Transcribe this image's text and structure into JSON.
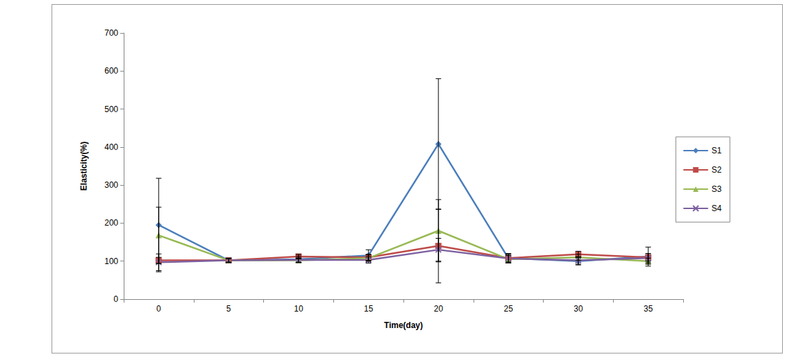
{
  "chart_data": {
    "type": "line",
    "x_label": "Time(day)",
    "y_label": "Elasticity(%)",
    "categories": [
      "0",
      "5",
      "10",
      "15",
      "20",
      "25",
      "30",
      "35"
    ],
    "ylim": [
      0,
      700
    ],
    "yticks": [
      0,
      100,
      200,
      300,
      400,
      500,
      600,
      700
    ],
    "grid": false,
    "legend": "right",
    "series": [
      {
        "name": "S1",
        "color": "#4a7ebb",
        "marker": "diamond",
        "values": [
          195,
          102,
          105,
          115,
          408,
          108,
          100,
          112
        ],
        "errors": [
          123,
          6,
          8,
          15,
          172,
          12,
          10,
          25
        ]
      },
      {
        "name": "S2",
        "color": "#be4b48",
        "marker": "square",
        "values": [
          102,
          102,
          112,
          110,
          140,
          108,
          118,
          110
        ],
        "errors": [
          8,
          5,
          6,
          8,
          97,
          10,
          8,
          10
        ]
      },
      {
        "name": "S3",
        "color": "#98b954",
        "marker": "triangle",
        "values": [
          168,
          102,
          102,
          108,
          180,
          105,
          110,
          100
        ],
        "errors": [
          74,
          5,
          6,
          8,
          82,
          10,
          8,
          8
        ]
      },
      {
        "name": "S4",
        "color": "#7d60a0",
        "marker": "x",
        "values": [
          97,
          102,
          103,
          103,
          130,
          107,
          102,
          108
        ],
        "errors": [
          22,
          5,
          6,
          8,
          30,
          12,
          10,
          12
        ]
      }
    ]
  }
}
